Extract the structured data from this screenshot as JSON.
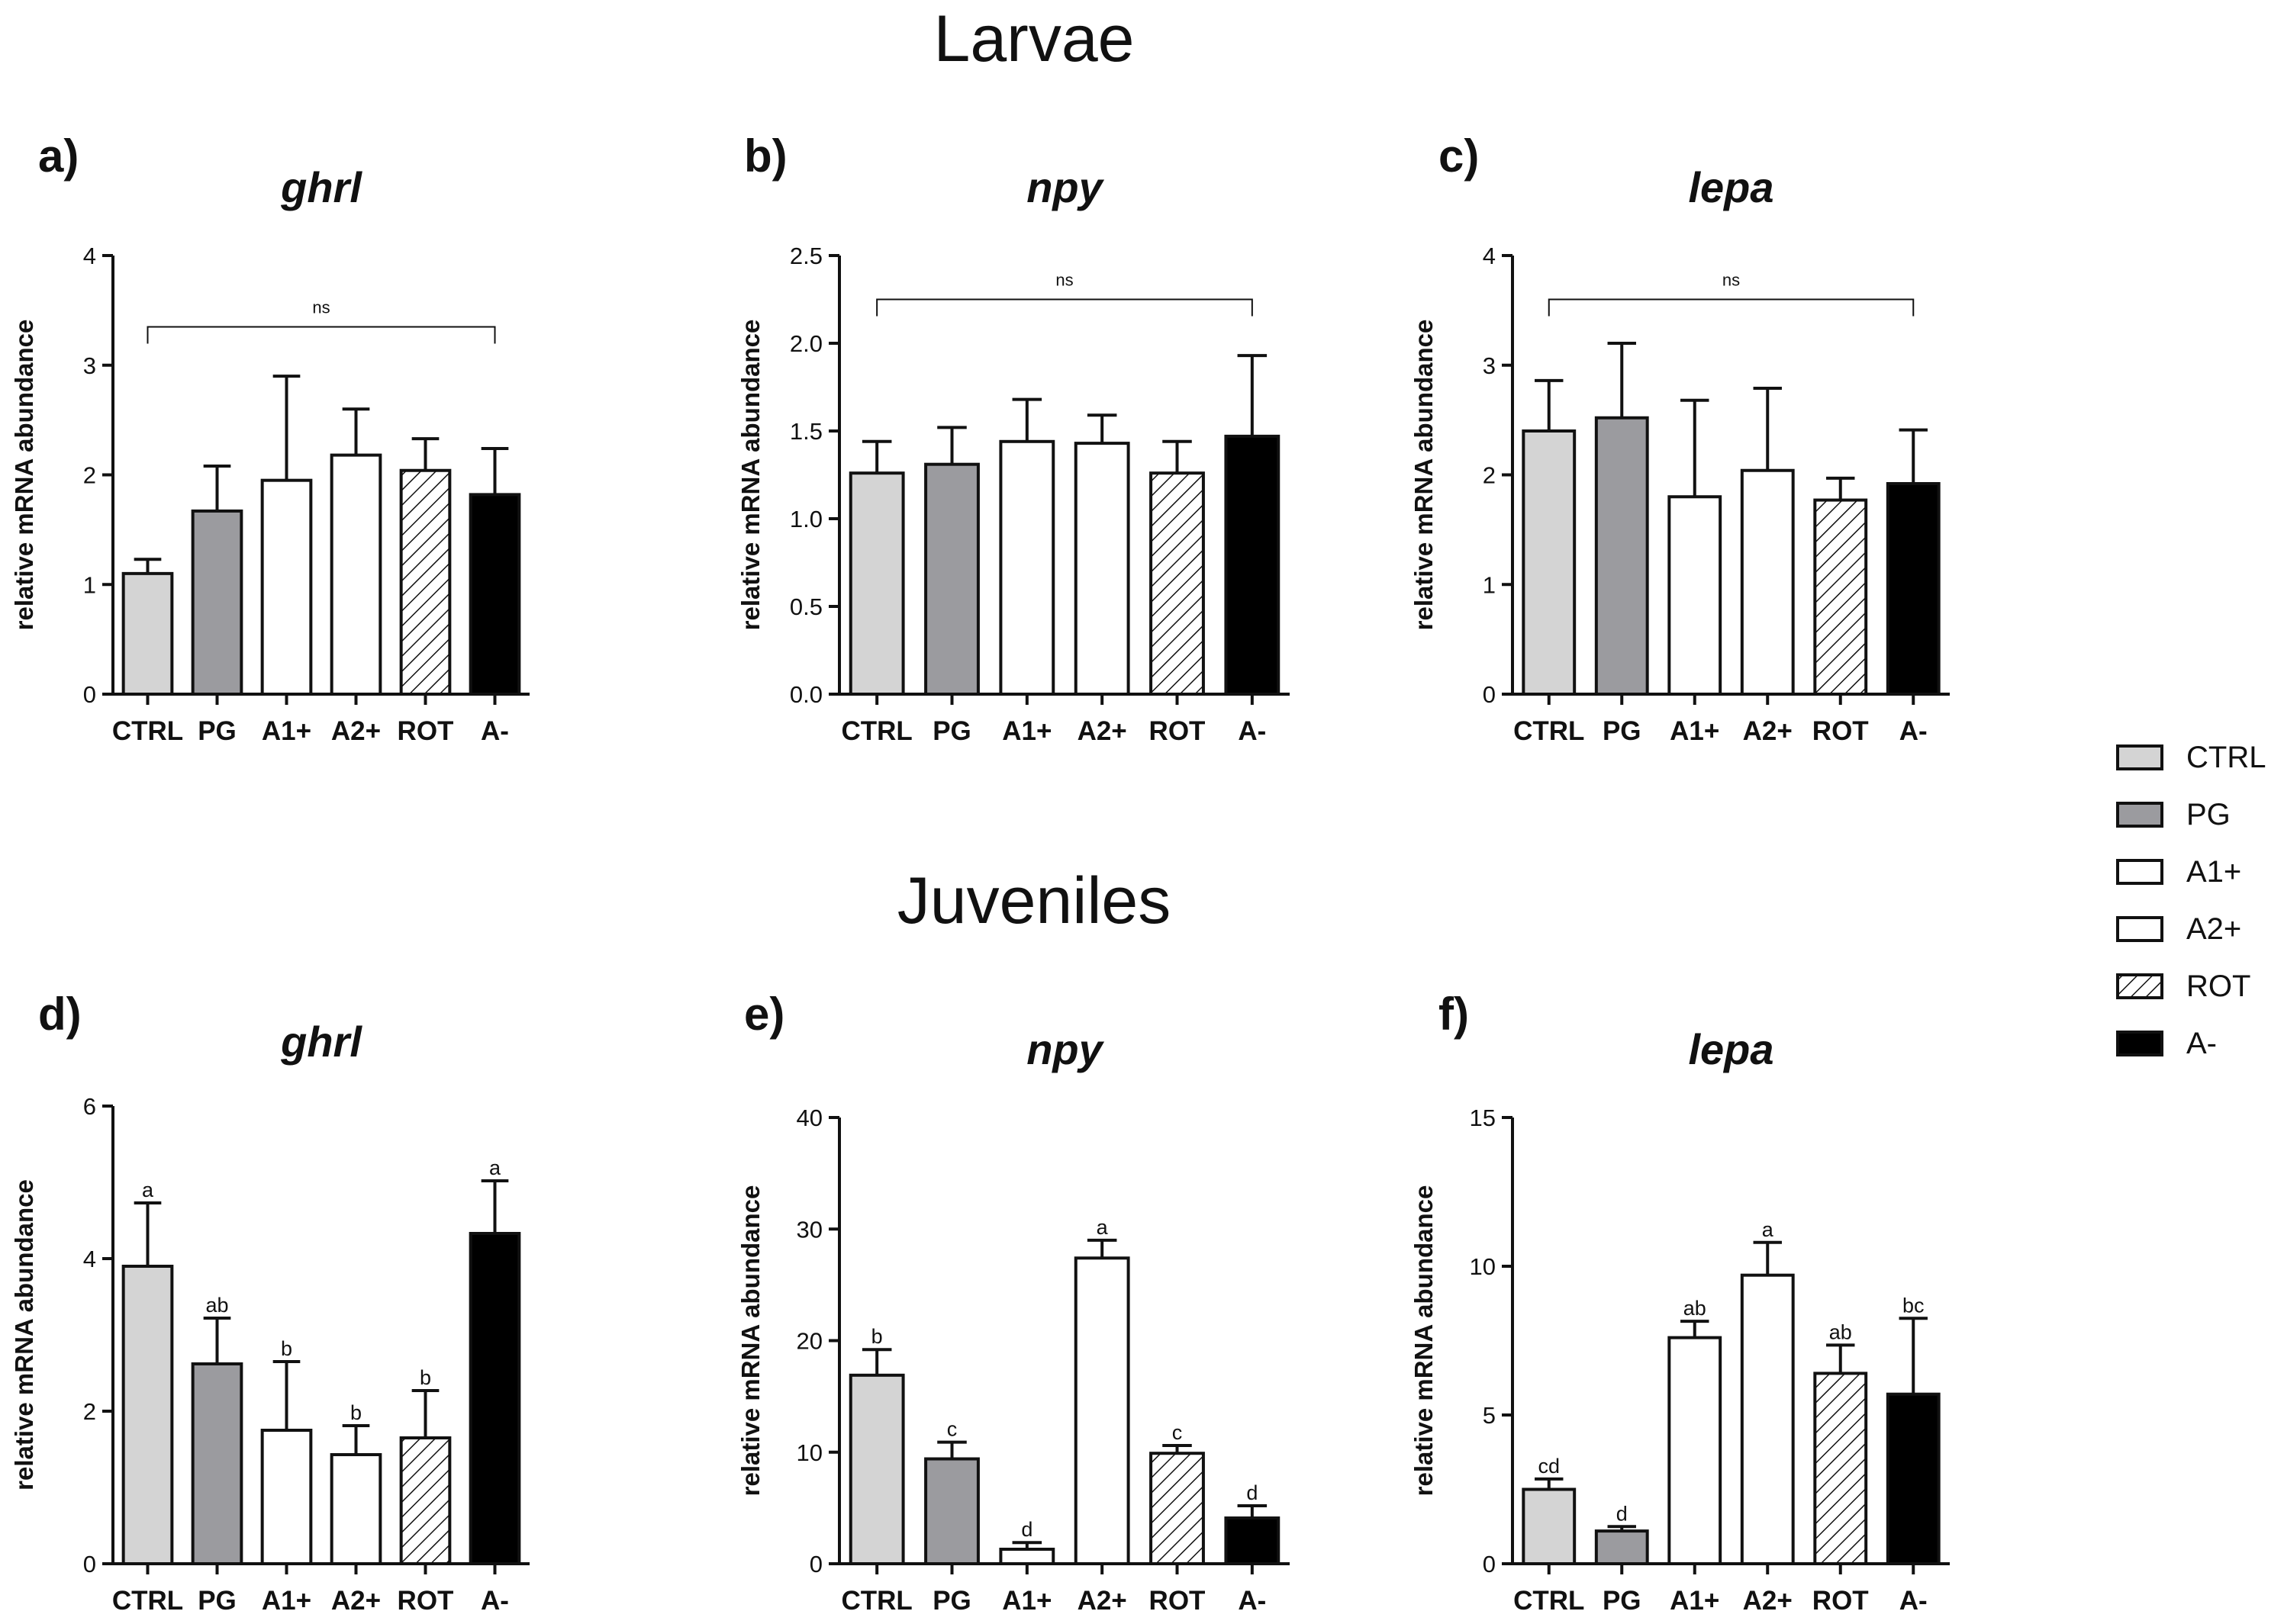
{
  "row_titles": {
    "top": "Larvae",
    "bottom": "Juveniles"
  },
  "legend": {
    "entries": [
      {
        "label": "CTRL",
        "fill": "#d4d4d4",
        "hatch": false
      },
      {
        "label": "PG",
        "fill": "#9b9b9f",
        "hatch": false
      },
      {
        "label": "A1+",
        "fill": "#ffffff",
        "hatch": false
      },
      {
        "label": "A2+",
        "fill": "#ffffff",
        "hatch": false
      },
      {
        "label": "ROT",
        "fill": "#ffffff",
        "hatch": true
      },
      {
        "label": "A-",
        "fill": "#000000",
        "hatch": false
      }
    ]
  },
  "colors": {
    "axis": "#111111",
    "stroke": "#111111"
  },
  "chart_data": [
    {
      "id": "a",
      "letter": "a)",
      "gene": "ghrl",
      "type": "bar",
      "ylabel": "relative mRNA abundance",
      "categories": [
        "CTRL",
        "PG",
        "A1+",
        "A2+",
        "ROT",
        "A-"
      ],
      "values": [
        1.1,
        1.67,
        1.95,
        2.18,
        2.04,
        1.82
      ],
      "errors": [
        0.13,
        0.41,
        0.95,
        0.42,
        0.29,
        0.42
      ],
      "ylim": [
        0,
        4
      ],
      "yticks": [
        "0",
        "1",
        "2",
        "3",
        "4"
      ],
      "ytick_values": [
        0,
        1,
        2,
        3,
        4
      ],
      "bracket": {
        "label": "ns",
        "y": 3.35
      },
      "letters": []
    },
    {
      "id": "b",
      "letter": "b)",
      "gene": "npy",
      "type": "bar",
      "ylabel": "relative mRNA abundance",
      "categories": [
        "CTRL",
        "PG",
        "A1+",
        "A2+",
        "ROT",
        "A-"
      ],
      "values": [
        1.26,
        1.31,
        1.44,
        1.43,
        1.26,
        1.47
      ],
      "errors": [
        0.18,
        0.21,
        0.24,
        0.16,
        0.18,
        0.46
      ],
      "ylim": [
        0,
        2.5
      ],
      "yticks": [
        "0.0",
        "0.5",
        "1.0",
        "1.5",
        "2.0",
        "2.5"
      ],
      "ytick_values": [
        0,
        0.5,
        1.0,
        1.5,
        2.0,
        2.5
      ],
      "bracket": {
        "label": "ns",
        "y": 2.25
      },
      "letters": []
    },
    {
      "id": "c",
      "letter": "c)",
      "gene": "lepa",
      "type": "bar",
      "ylabel": "relative mRNA abundance",
      "categories": [
        "CTRL",
        "PG",
        "A1+",
        "A2+",
        "ROT",
        "A-"
      ],
      "values": [
        2.4,
        2.52,
        1.8,
        2.04,
        1.77,
        1.92
      ],
      "errors": [
        0.46,
        0.68,
        0.88,
        0.75,
        0.2,
        0.49
      ],
      "ylim": [
        0,
        4
      ],
      "yticks": [
        "0",
        "1",
        "2",
        "3",
        "4"
      ],
      "ytick_values": [
        0,
        1,
        2,
        3,
        4
      ],
      "bracket": {
        "label": "ns",
        "y": 3.6
      },
      "letters": []
    },
    {
      "id": "d",
      "letter": "d)",
      "gene": "ghrl",
      "type": "bar",
      "ylabel": "relative mRNA abundance",
      "categories": [
        "CTRL",
        "PG",
        "A1+",
        "A2+",
        "ROT",
        "A-"
      ],
      "values": [
        3.9,
        2.62,
        1.75,
        1.43,
        1.65,
        4.33
      ],
      "errors": [
        0.83,
        0.6,
        0.9,
        0.38,
        0.62,
        0.69
      ],
      "ylim": [
        0,
        6
      ],
      "yticks": [
        "0",
        "2",
        "4",
        "6"
      ],
      "ytick_values": [
        0,
        2,
        4,
        6
      ],
      "bracket": null,
      "letters": [
        "a",
        "ab",
        "b",
        "b",
        "b",
        "a"
      ]
    },
    {
      "id": "e",
      "letter": "e)",
      "gene": "npy",
      "type": "bar",
      "ylabel": "relative mRNA abundance",
      "categories": [
        "CTRL",
        "PG",
        "A1+",
        "A2+",
        "ROT",
        "A-"
      ],
      "values": [
        16.9,
        9.4,
        1.3,
        27.4,
        9.9,
        4.1
      ],
      "errors": [
        2.3,
        1.5,
        0.6,
        1.6,
        0.7,
        1.1
      ],
      "ylim": [
        0,
        40
      ],
      "yticks": [
        "0",
        "10",
        "20",
        "30",
        "40"
      ],
      "ytick_values": [
        0,
        10,
        20,
        30,
        40
      ],
      "bracket": null,
      "letters": [
        "b",
        "c",
        "d",
        "a",
        "c",
        "d"
      ]
    },
    {
      "id": "f",
      "letter": "f)",
      "gene": "lepa",
      "type": "bar",
      "ylabel": "relative mRNA abundance",
      "categories": [
        "CTRL",
        "PG",
        "A1+",
        "A2+",
        "ROT",
        "A-"
      ],
      "values": [
        2.5,
        1.1,
        7.6,
        9.7,
        6.4,
        5.7
      ],
      "errors": [
        0.35,
        0.15,
        0.55,
        1.1,
        0.95,
        2.55
      ],
      "ylim": [
        0,
        15
      ],
      "yticks": [
        "0",
        "5",
        "10",
        "15"
      ],
      "ytick_values": [
        0,
        5,
        10,
        15
      ],
      "bracket": null,
      "letters": [
        "cd",
        "d",
        "ab",
        "a",
        "ab",
        "bc"
      ]
    }
  ]
}
